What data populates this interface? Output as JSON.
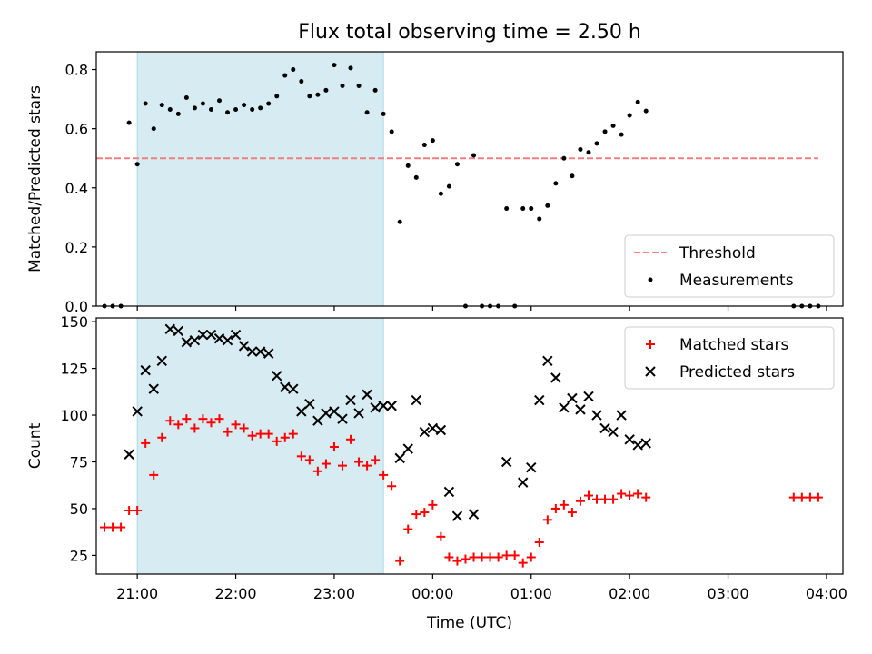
{
  "chart_data": [
    {
      "type": "scatter",
      "title": "Flux total observing time = 2.50 h",
      "ylabel": "Matched/Predicted stars",
      "xlabel": "",
      "xlim": [
        "20:35",
        "04:10"
      ],
      "ylim": [
        0,
        0.86
      ],
      "yticks": [
        "0.0",
        "0.2",
        "0.4",
        "0.6",
        "0.8"
      ],
      "ytick_values": [
        0,
        0.2,
        0.4,
        0.6,
        0.8
      ],
      "shaded_interval": [
        "21:00",
        "23:30"
      ],
      "shade_color": "#add8e6",
      "threshold": {
        "name": "Threshold",
        "value": 0.5,
        "x_range": [
          "20:35",
          "03:55"
        ],
        "color": "#f08080"
      },
      "legend": {
        "placement": "lower right",
        "entries": [
          "Threshold",
          "Measurements"
        ]
      },
      "series": [
        {
          "name": "Measurements",
          "color": "#000000",
          "marker": "dot",
          "points": [
            [
              "20:40",
              0
            ],
            [
              "20:45",
              0
            ],
            [
              "20:50",
              0
            ],
            [
              "20:55",
              0.62
            ],
            [
              "21:00",
              0.48
            ],
            [
              "21:05",
              0.685
            ],
            [
              "21:10",
              0.6
            ],
            [
              "21:15",
              0.68
            ],
            [
              "21:20",
              0.665
            ],
            [
              "21:25",
              0.65
            ],
            [
              "21:30",
              0.705
            ],
            [
              "21:35",
              0.67
            ],
            [
              "21:40",
              0.685
            ],
            [
              "21:45",
              0.665
            ],
            [
              "21:50",
              0.695
            ],
            [
              "21:55",
              0.655
            ],
            [
              "22:00",
              0.665
            ],
            [
              "22:05",
              0.68
            ],
            [
              "22:10",
              0.665
            ],
            [
              "22:15",
              0.67
            ],
            [
              "22:20",
              0.685
            ],
            [
              "22:25",
              0.71
            ],
            [
              "22:30",
              0.78
            ],
            [
              "22:35",
              0.8
            ],
            [
              "22:40",
              0.76
            ],
            [
              "22:45",
              0.71
            ],
            [
              "22:50",
              0.715
            ],
            [
              "22:55",
              0.73
            ],
            [
              "23:00",
              0.815
            ],
            [
              "23:05",
              0.745
            ],
            [
              "23:10",
              0.805
            ],
            [
              "23:15",
              0.745
            ],
            [
              "23:20",
              0.655
            ],
            [
              "23:25",
              0.73
            ],
            [
              "23:30",
              0.65
            ],
            [
              "23:35",
              0.59
            ],
            [
              "23:40",
              0.285
            ],
            [
              "23:45",
              0.475
            ],
            [
              "23:50",
              0.435
            ],
            [
              "23:55",
              0.545
            ],
            [
              "00:00",
              0.56
            ],
            [
              "00:05",
              0.38
            ],
            [
              "00:10",
              0.405
            ],
            [
              "00:15",
              0.48
            ],
            [
              "00:20",
              0
            ],
            [
              "00:25",
              0.51
            ],
            [
              "00:30",
              0
            ],
            [
              "00:35",
              0
            ],
            [
              "00:40",
              0
            ],
            [
              "00:45",
              0.33
            ],
            [
              "00:50",
              0
            ],
            [
              "00:55",
              0.33
            ],
            [
              "01:00",
              0.33
            ],
            [
              "01:05",
              0.295
            ],
            [
              "01:10",
              0.34
            ],
            [
              "01:15",
              0.415
            ],
            [
              "01:20",
              0.5
            ],
            [
              "01:25",
              0.44
            ],
            [
              "01:30",
              0.53
            ],
            [
              "01:35",
              0.52
            ],
            [
              "01:40",
              0.55
            ],
            [
              "01:45",
              0.59
            ],
            [
              "01:50",
              0.61
            ],
            [
              "01:55",
              0.58
            ],
            [
              "02:00",
              0.645
            ],
            [
              "02:05",
              0.69
            ],
            [
              "02:10",
              0.66
            ],
            [
              "03:40",
              0
            ],
            [
              "03:45",
              0
            ],
            [
              "03:50",
              0
            ],
            [
              "03:55",
              0
            ]
          ]
        }
      ]
    },
    {
      "type": "scatter",
      "title": "",
      "ylabel": "Count",
      "xlabel": "Time (UTC)",
      "xlim": [
        "20:35",
        "04:10"
      ],
      "ylim": [
        15,
        152
      ],
      "yticks": [
        "25",
        "50",
        "75",
        "100",
        "125",
        "150"
      ],
      "ytick_values": [
        25,
        50,
        75,
        100,
        125,
        150
      ],
      "xticks": [
        "21:00",
        "22:00",
        "23:00",
        "00:00",
        "01:00",
        "02:00",
        "03:00",
        "04:00"
      ],
      "shaded_interval": [
        "21:00",
        "23:30"
      ],
      "shade_color": "#add8e6",
      "legend": {
        "placement": "upper right",
        "entries": [
          "Matched stars",
          "Predicted stars"
        ]
      },
      "series": [
        {
          "name": "Matched stars",
          "color": "#ff0000",
          "marker": "plus",
          "points": [
            [
              "20:40",
              40
            ],
            [
              "20:45",
              40
            ],
            [
              "20:50",
              40
            ],
            [
              "20:55",
              49
            ],
            [
              "21:00",
              49
            ],
            [
              "21:05",
              85
            ],
            [
              "21:10",
              68
            ],
            [
              "21:15",
              88
            ],
            [
              "21:20",
              97
            ],
            [
              "21:25",
              95
            ],
            [
              "21:30",
              98
            ],
            [
              "21:35",
              93
            ],
            [
              "21:40",
              98
            ],
            [
              "21:45",
              96
            ],
            [
              "21:50",
              98
            ],
            [
              "21:55",
              91
            ],
            [
              "22:00",
              95
            ],
            [
              "22:05",
              93
            ],
            [
              "22:10",
              89
            ],
            [
              "22:15",
              90
            ],
            [
              "22:20",
              90
            ],
            [
              "22:25",
              86
            ],
            [
              "22:30",
              88
            ],
            [
              "22:35",
              90
            ],
            [
              "22:40",
              78
            ],
            [
              "22:45",
              76
            ],
            [
              "22:50",
              70
            ],
            [
              "22:55",
              74
            ],
            [
              "23:00",
              83
            ],
            [
              "23:05",
              73
            ],
            [
              "23:10",
              87
            ],
            [
              "23:15",
              75
            ],
            [
              "23:20",
              73
            ],
            [
              "23:25",
              76
            ],
            [
              "23:30",
              68
            ],
            [
              "23:35",
              62
            ],
            [
              "23:40",
              22
            ],
            [
              "23:45",
              39
            ],
            [
              "23:50",
              47
            ],
            [
              "23:55",
              48
            ],
            [
              "00:00",
              52
            ],
            [
              "00:05",
              35
            ],
            [
              "00:10",
              24
            ],
            [
              "00:15",
              22
            ],
            [
              "00:20",
              23
            ],
            [
              "00:25",
              24
            ],
            [
              "00:30",
              24
            ],
            [
              "00:35",
              24
            ],
            [
              "00:40",
              24
            ],
            [
              "00:45",
              25
            ],
            [
              "00:50",
              25
            ],
            [
              "00:55",
              21
            ],
            [
              "01:00",
              24
            ],
            [
              "01:05",
              32
            ],
            [
              "01:10",
              44
            ],
            [
              "01:15",
              50
            ],
            [
              "01:20",
              52
            ],
            [
              "01:25",
              48
            ],
            [
              "01:30",
              54
            ],
            [
              "01:35",
              57
            ],
            [
              "01:40",
              55
            ],
            [
              "01:45",
              55
            ],
            [
              "01:50",
              55
            ],
            [
              "01:55",
              58
            ],
            [
              "02:00",
              57
            ],
            [
              "02:05",
              58
            ],
            [
              "02:10",
              56
            ],
            [
              "03:40",
              56
            ],
            [
              "03:45",
              56
            ],
            [
              "03:50",
              56
            ],
            [
              "03:55",
              56
            ]
          ]
        },
        {
          "name": "Predicted stars",
          "color": "#000000",
          "marker": "x",
          "points": [
            [
              "20:55",
              79
            ],
            [
              "21:00",
              102
            ],
            [
              "21:05",
              124
            ],
            [
              "21:10",
              114
            ],
            [
              "21:15",
              129
            ],
            [
              "21:20",
              146
            ],
            [
              "21:25",
              145
            ],
            [
              "21:30",
              139
            ],
            [
              "21:35",
              140
            ],
            [
              "21:40",
              143
            ],
            [
              "21:45",
              143
            ],
            [
              "21:50",
              141
            ],
            [
              "21:55",
              140
            ],
            [
              "22:00",
              143
            ],
            [
              "22:05",
              137
            ],
            [
              "22:10",
              134
            ],
            [
              "22:15",
              134
            ],
            [
              "22:20",
              133
            ],
            [
              "22:25",
              121
            ],
            [
              "22:30",
              115
            ],
            [
              "22:35",
              114
            ],
            [
              "22:40",
              102
            ],
            [
              "22:45",
              106
            ],
            [
              "22:50",
              97
            ],
            [
              "22:55",
              101
            ],
            [
              "23:00",
              102
            ],
            [
              "23:05",
              98
            ],
            [
              "23:10",
              108
            ],
            [
              "23:15",
              101
            ],
            [
              "23:20",
              111
            ],
            [
              "23:25",
              104
            ],
            [
              "23:30",
              105
            ],
            [
              "23:35",
              105
            ],
            [
              "23:40",
              77
            ],
            [
              "23:45",
              82
            ],
            [
              "23:50",
              108
            ],
            [
              "23:55",
              91
            ],
            [
              "00:00",
              93
            ],
            [
              "00:05",
              92
            ],
            [
              "00:10",
              59
            ],
            [
              "00:15",
              46
            ],
            [
              "00:25",
              47
            ],
            [
              "00:45",
              75
            ],
            [
              "00:55",
              64
            ],
            [
              "01:00",
              72
            ],
            [
              "01:05",
              108
            ],
            [
              "01:10",
              129
            ],
            [
              "01:15",
              120
            ],
            [
              "01:20",
              104
            ],
            [
              "01:25",
              109
            ],
            [
              "01:30",
              103
            ],
            [
              "01:35",
              110
            ],
            [
              "01:40",
              100
            ],
            [
              "01:45",
              93
            ],
            [
              "01:50",
              91
            ],
            [
              "01:55",
              100
            ],
            [
              "02:00",
              87
            ],
            [
              "02:05",
              84
            ],
            [
              "02:10",
              85
            ]
          ]
        }
      ]
    }
  ]
}
